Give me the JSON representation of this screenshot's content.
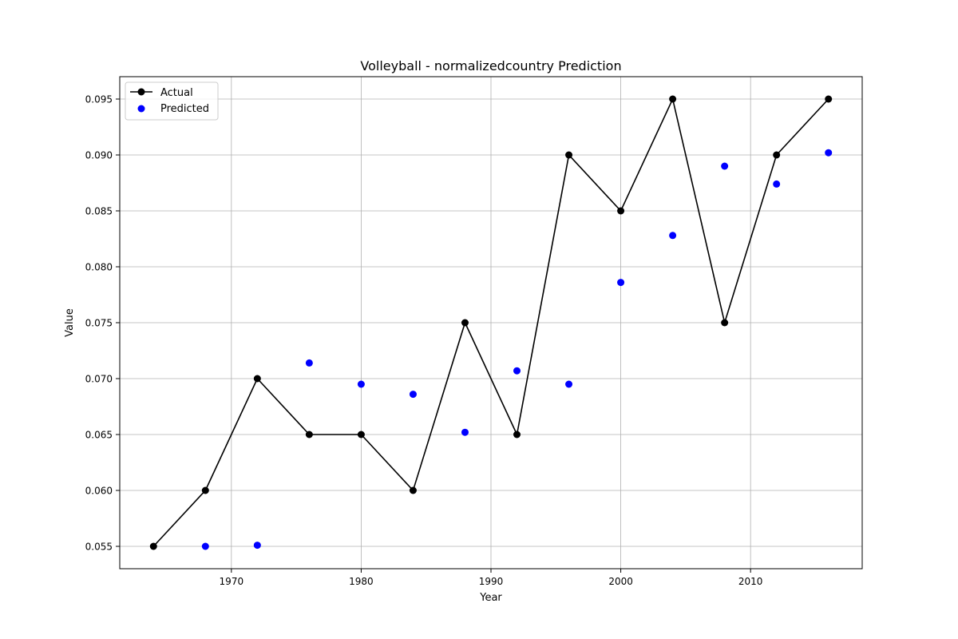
{
  "chart_data": {
    "type": "line",
    "title": "Volleyball - normalizedcountry Prediction",
    "xlabel": "Year",
    "ylabel": "Value",
    "xlim": [
      1961.4,
      2018.6
    ],
    "ylim": [
      0.053,
      0.097
    ],
    "xticks": [
      1970,
      1980,
      1990,
      2000,
      2010
    ],
    "yticks": [
      0.055,
      0.06,
      0.065,
      0.07,
      0.075,
      0.08,
      0.085,
      0.09,
      0.095
    ],
    "ytick_labels": [
      "0.055",
      "0.060",
      "0.065",
      "0.070",
      "0.075",
      "0.080",
      "0.085",
      "0.090",
      "0.095"
    ],
    "grid": true,
    "legend_position": "top-left",
    "x": [
      1964,
      1968,
      1972,
      1976,
      1980,
      1984,
      1988,
      1992,
      1996,
      2000,
      2004,
      2008,
      2012,
      2016
    ],
    "series": [
      {
        "name": "Actual",
        "kind": "line-marker",
        "color": "#000000",
        "values": [
          0.055,
          0.06,
          0.07,
          0.065,
          0.065,
          0.06,
          0.075,
          0.065,
          0.09,
          0.085,
          0.095,
          0.075,
          0.09,
          0.095
        ]
      },
      {
        "name": "Predicted",
        "kind": "scatter",
        "color": "#0000ff",
        "x": [
          1968,
          1972,
          1976,
          1980,
          1984,
          1988,
          1992,
          1996,
          2000,
          2004,
          2008,
          2012,
          2016
        ],
        "values": [
          0.055,
          0.0551,
          0.0714,
          0.0695,
          0.0686,
          0.0652,
          0.0707,
          0.0695,
          0.0786,
          0.0828,
          0.089,
          0.0874,
          0.0902
        ]
      }
    ]
  }
}
